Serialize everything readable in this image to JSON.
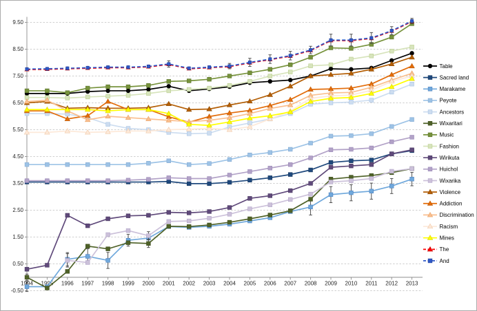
{
  "window": {
    "background": "#ffffff",
    "frame_border": "#ababab"
  },
  "chart_data": {
    "type": "line",
    "title": "",
    "xlabel": "",
    "ylabel": "",
    "grid": "horizontal-dashed",
    "legend_position": "right",
    "ylim": [
      -0.5,
      9.5
    ],
    "y_ticks": [
      "9.50",
      "8.50",
      "7.50",
      "6.50",
      "5.50",
      "4.50",
      "3.50",
      "2.50",
      "1.50",
      "0.50",
      "-0.50"
    ],
    "categories": [
      "1994",
      "1995",
      "1996",
      "1997",
      "1998",
      "1999",
      "2000",
      "2001",
      "2002",
      "2003",
      "2004",
      "2005",
      "2006",
      "2007",
      "2008",
      "2009",
      "2010",
      "2011",
      "2012",
      "2013"
    ],
    "series": [
      {
        "name": "Table",
        "color": "#000000",
        "edge": "#000000",
        "marker": "circle",
        "dash": "solid",
        "values": [
          6.85,
          6.85,
          6.85,
          6.92,
          6.95,
          6.95,
          7.0,
          7.12,
          6.95,
          7.02,
          7.1,
          7.25,
          7.3,
          7.35,
          7.5,
          7.77,
          7.75,
          7.8,
          8.08,
          8.35
        ]
      },
      {
        "name": "Sacred land",
        "color": "#1F497D",
        "edge": "#17375E",
        "marker": "square",
        "dash": "solid",
        "values": [
          3.55,
          3.55,
          3.55,
          3.55,
          3.55,
          3.55,
          3.55,
          3.57,
          3.49,
          3.49,
          3.54,
          3.62,
          3.71,
          3.83,
          4.0,
          4.28,
          4.34,
          4.37,
          4.6,
          4.72
        ]
      },
      {
        "name": "Marakame",
        "color": "#6FA8DC",
        "edge": "#4F81BD",
        "marker": "square",
        "dash": "solid",
        "values": [
          -0.35,
          -0.35,
          0.67,
          0.78,
          0.63,
          1.38,
          1.46,
          1.89,
          1.86,
          1.9,
          1.98,
          2.1,
          2.22,
          2.45,
          2.62,
          3.08,
          3.15,
          3.21,
          3.4,
          3.66
        ],
        "errors": [
          0.18,
          0,
          0.25,
          0.28,
          0.3,
          0.22,
          0,
          0,
          0,
          0,
          0,
          0,
          0,
          0,
          0.3,
          0.3,
          0.3,
          0.3,
          0.28,
          0.25
        ]
      },
      {
        "name": "Peyote",
        "color": "#9DC3E6",
        "edge": "#84A9D1",
        "marker": "square",
        "dash": "solid",
        "values": [
          4.2,
          4.2,
          4.2,
          4.2,
          4.2,
          4.2,
          4.25,
          4.34,
          4.2,
          4.24,
          4.39,
          4.56,
          4.65,
          4.77,
          5.0,
          5.26,
          5.28,
          5.35,
          5.62,
          5.88
        ]
      },
      {
        "name": "Ancestors",
        "color": "#CDDDF0",
        "edge": "#A8C4E4",
        "marker": "square",
        "dash": "solid",
        "values": [
          6.1,
          6.1,
          6.08,
          5.95,
          5.7,
          5.55,
          5.5,
          5.4,
          5.35,
          5.37,
          5.6,
          5.75,
          5.9,
          6.1,
          6.45,
          6.5,
          6.53,
          6.6,
          6.9,
          7.2
        ]
      },
      {
        "name": "Wixaritari",
        "color": "#4F6228",
        "edge": "#3E4D1F",
        "marker": "square",
        "dash": "solid",
        "values": [
          0.0,
          -0.4,
          0.22,
          1.16,
          1.06,
          1.29,
          1.26,
          1.9,
          1.89,
          1.95,
          2.05,
          2.18,
          2.32,
          2.48,
          2.91,
          3.66,
          3.73,
          3.79,
          3.9,
          4.05
        ],
        "errors": [
          0.12,
          0,
          0,
          0,
          0,
          0,
          0.15,
          0,
          0,
          0,
          0,
          0,
          0,
          0,
          0,
          0,
          0,
          0,
          0,
          0
        ]
      },
      {
        "name": "Music",
        "color": "#77933C",
        "edge": "#5E752F",
        "marker": "square",
        "dash": "solid",
        "values": [
          6.95,
          6.95,
          6.88,
          7.05,
          7.1,
          7.1,
          7.15,
          7.3,
          7.32,
          7.38,
          7.5,
          7.62,
          7.75,
          7.92,
          8.2,
          8.55,
          8.53,
          8.68,
          8.95,
          9.45
        ]
      },
      {
        "name": "Fashion",
        "color": "#D7E4BC",
        "edge": "#B9CD8C",
        "marker": "square",
        "dash": "solid",
        "values": [
          6.7,
          6.7,
          6.68,
          6.72,
          6.75,
          6.78,
          6.85,
          6.95,
          7.0,
          7.05,
          7.15,
          7.3,
          7.5,
          7.65,
          7.88,
          7.92,
          8.13,
          8.25,
          8.43,
          8.58
        ]
      },
      {
        "name": "Wirikuta",
        "color": "#604A7B",
        "edge": "#4A3861",
        "marker": "square",
        "dash": "solid",
        "values": [
          0.3,
          0.45,
          2.31,
          1.92,
          2.18,
          2.29,
          2.31,
          2.42,
          2.4,
          2.45,
          2.6,
          2.94,
          3.04,
          3.23,
          3.5,
          4.1,
          4.15,
          4.2,
          4.6,
          4.75
        ]
      },
      {
        "name": "Huichol",
        "color": "#B2A2C7",
        "edge": "#9A88B8",
        "marker": "square",
        "dash": "solid",
        "values": [
          3.6,
          3.6,
          3.6,
          3.6,
          3.6,
          3.62,
          3.65,
          3.71,
          3.68,
          3.68,
          3.81,
          3.94,
          4.07,
          4.2,
          4.45,
          4.75,
          4.77,
          4.82,
          5.05,
          5.22
        ]
      },
      {
        "name": "Wixarika",
        "color": "#CCC1DA",
        "edge": "#B3A6C9",
        "marker": "square",
        "dash": "solid",
        "values": [
          null,
          null,
          0.63,
          0.55,
          1.59,
          1.74,
          1.55,
          2.08,
          2.1,
          2.2,
          2.35,
          2.55,
          2.7,
          2.9,
          3.1,
          3.55,
          3.6,
          3.68,
          3.95,
          4.05
        ],
        "errors": [
          0,
          0,
          0.25,
          0,
          0,
          0,
          0.15,
          0,
          0,
          0,
          0,
          0,
          0,
          0,
          0,
          0,
          0,
          0,
          0,
          0
        ]
      },
      {
        "name": "Violence",
        "color": "#B45F06",
        "edge": "#8F4B05",
        "marker": "triangle",
        "dash": "solid",
        "values": [
          6.5,
          6.55,
          6.3,
          6.32,
          6.3,
          6.3,
          6.32,
          6.46,
          6.25,
          6.27,
          6.42,
          6.56,
          6.8,
          7.12,
          7.5,
          7.55,
          7.6,
          7.75,
          7.95,
          8.2
        ]
      },
      {
        "name": "Addiction",
        "color": "#E36C09",
        "edge": "#BC5A08",
        "marker": "triangle",
        "dash": "solid",
        "values": [
          6.2,
          6.2,
          5.9,
          6.02,
          6.55,
          6.25,
          6.25,
          5.98,
          5.78,
          5.99,
          6.12,
          6.22,
          6.4,
          6.62,
          7.0,
          7.02,
          7.05,
          7.2,
          7.55,
          7.87
        ]
      },
      {
        "name": "Discrimination",
        "color": "#FABF8F",
        "edge": "#E8A368",
        "marker": "triangle",
        "dash": "solid",
        "values": [
          6.55,
          6.6,
          6.2,
          5.87,
          6.0,
          5.95,
          5.9,
          5.85,
          5.8,
          5.85,
          5.95,
          6.1,
          6.29,
          6.42,
          6.78,
          6.87,
          6.89,
          7.08,
          7.35,
          7.6
        ]
      },
      {
        "name": "Racism",
        "color": "#FDE9D9",
        "edge": "#F0C9A8",
        "marker": "triangle",
        "dash": "solid",
        "values": [
          5.4,
          5.4,
          5.45,
          5.4,
          5.42,
          5.45,
          5.45,
          5.5,
          5.52,
          5.55,
          5.5,
          5.61,
          5.9,
          6.2,
          6.67,
          6.76,
          6.79,
          6.97,
          7.3,
          7.5
        ]
      },
      {
        "name": "Mines",
        "color": "#FFFF00",
        "edge": "#D6CF00",
        "marker": "triangle",
        "dash": "solid",
        "values": [
          6.25,
          6.25,
          6.25,
          6.25,
          6.2,
          6.25,
          6.25,
          6.1,
          5.7,
          5.66,
          5.79,
          5.93,
          6.02,
          6.16,
          6.55,
          6.67,
          6.7,
          6.85,
          7.1,
          7.4
        ]
      },
      {
        "name": "The",
        "color": "#FF0000",
        "edge": "#C00000",
        "marker": "triangle",
        "dash": "dashed",
        "values": [
          7.74,
          7.75,
          7.77,
          7.79,
          7.81,
          7.81,
          7.84,
          7.93,
          7.77,
          7.81,
          7.85,
          7.99,
          8.11,
          8.24,
          8.45,
          8.82,
          8.82,
          8.9,
          9.17,
          9.53
        ]
      },
      {
        "name": "And",
        "color": "#2E58C8",
        "edge": "#1F3E96",
        "marker": "square",
        "dash": "dashed",
        "values": [
          7.76,
          7.77,
          7.79,
          7.81,
          7.83,
          7.83,
          7.86,
          7.95,
          7.79,
          7.83,
          7.87,
          8.01,
          8.13,
          8.26,
          8.47,
          8.84,
          8.84,
          8.92,
          9.19,
          9.55
        ],
        "errors": [
          0,
          0,
          0,
          0,
          0,
          0,
          0,
          0.12,
          0,
          0,
          0.1,
          0.15,
          0.16,
          0.16,
          0.14,
          0.22,
          0.22,
          0.2,
          0.15,
          0.1
        ]
      }
    ],
    "colors": {
      "gridline": "#BFBFBF",
      "axis": "#8C8C8C",
      "tick_label": "#262626",
      "error_bar": "#404040",
      "legend_text": "#000000"
    }
  }
}
